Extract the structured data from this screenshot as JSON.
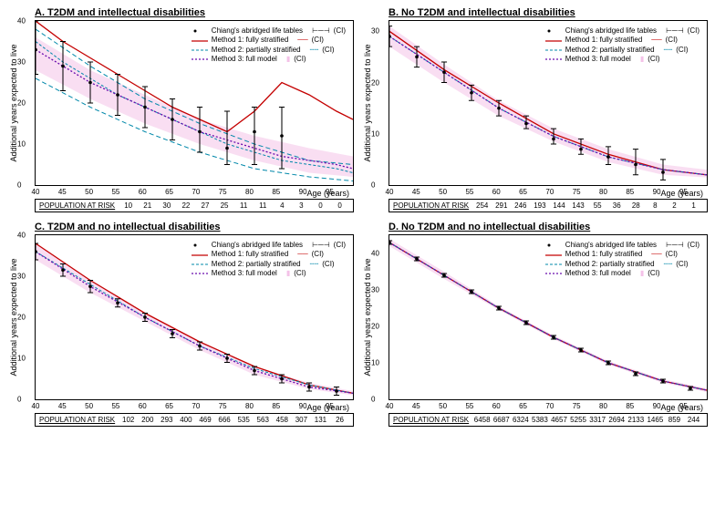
{
  "global": {
    "ylabel": "Additional years expected to live",
    "xlabel": "Age (years)",
    "pop_label": "POPULATION AT RISK",
    "x_ticks": [
      40,
      45,
      50,
      55,
      60,
      65,
      70,
      75,
      80,
      85,
      90,
      95
    ],
    "xlim": [
      40,
      98
    ],
    "legend": {
      "chiang": "Chiang's abridged life tables",
      "m1": "Method 1: fully stratified",
      "m2": "Method 2: partially stratified",
      "m3": "Method 3: full model",
      "ci": "(CI)"
    },
    "colors": {
      "points": "#000000",
      "m1_line": "#c40000",
      "m2_line": "#0088aa",
      "m3_line": "#6a0dad",
      "ci_fill": "#f4c2e8",
      "ci_fill_opacity": 0.55,
      "axis": "#000000"
    },
    "fonts": {
      "title_pt": 11,
      "axis_label_pt": 9,
      "tick_pt": 8,
      "legend_pt": 8
    }
  },
  "panels": [
    {
      "id": "A",
      "title": "A. T2DM and intellectual disabilities",
      "ylim": [
        0,
        40
      ],
      "y_ticks": [
        0,
        10,
        20,
        30,
        40
      ],
      "population": [
        10,
        21,
        30,
        22,
        27,
        25,
        11,
        11,
        4,
        3,
        0,
        0
      ],
      "points": [
        {
          "x": 40,
          "y": 33,
          "lo": 27,
          "hi": 40
        },
        {
          "x": 45,
          "y": 29,
          "lo": 23,
          "hi": 35
        },
        {
          "x": 50,
          "y": 25,
          "lo": 20,
          "hi": 30
        },
        {
          "x": 55,
          "y": 22,
          "lo": 17,
          "hi": 27
        },
        {
          "x": 60,
          "y": 19,
          "lo": 14,
          "hi": 24
        },
        {
          "x": 65,
          "y": 16,
          "lo": 11,
          "hi": 21
        },
        {
          "x": 70,
          "y": 13,
          "lo": 8,
          "hi": 19
        },
        {
          "x": 75,
          "y": 9,
          "lo": 5,
          "hi": 18
        },
        {
          "x": 80,
          "y": 13,
          "lo": 5,
          "hi": 19
        },
        {
          "x": 85,
          "y": 12,
          "lo": 4,
          "hi": 19
        }
      ],
      "m1": [
        [
          40,
          40
        ],
        [
          45,
          35
        ],
        [
          50,
          31
        ],
        [
          55,
          27
        ],
        [
          60,
          23
        ],
        [
          65,
          19
        ],
        [
          70,
          16
        ],
        [
          75,
          13
        ],
        [
          80,
          18
        ],
        [
          85,
          25
        ],
        [
          90,
          22
        ],
        [
          95,
          18
        ],
        [
          98,
          16
        ]
      ],
      "m2": [
        [
          40,
          35
        ],
        [
          45,
          30
        ],
        [
          50,
          26
        ],
        [
          55,
          22
        ],
        [
          60,
          19
        ],
        [
          65,
          16
        ],
        [
          70,
          13
        ],
        [
          75,
          10
        ],
        [
          80,
          8
        ],
        [
          85,
          6
        ],
        [
          90,
          5
        ],
        [
          95,
          4
        ],
        [
          98,
          3
        ]
      ],
      "m2_lo": [
        [
          40,
          26
        ],
        [
          50,
          19
        ],
        [
          60,
          13
        ],
        [
          70,
          8
        ],
        [
          80,
          4
        ],
        [
          90,
          2
        ],
        [
          98,
          1
        ]
      ],
      "m2_hi": [
        [
          40,
          38
        ],
        [
          50,
          29
        ],
        [
          60,
          21
        ],
        [
          70,
          15
        ],
        [
          80,
          10
        ],
        [
          90,
          6
        ],
        [
          98,
          5
        ]
      ],
      "m3": [
        [
          40,
          33
        ],
        [
          45,
          29
        ],
        [
          50,
          25
        ],
        [
          55,
          22
        ],
        [
          60,
          19
        ],
        [
          65,
          16
        ],
        [
          70,
          13
        ],
        [
          75,
          11
        ],
        [
          80,
          9
        ],
        [
          85,
          7
        ],
        [
          90,
          6
        ],
        [
          95,
          5
        ],
        [
          98,
          4
        ]
      ],
      "m3_ci_lo": [
        [
          40,
          28
        ],
        [
          50,
          21
        ],
        [
          60,
          15
        ],
        [
          70,
          10
        ],
        [
          80,
          6
        ],
        [
          90,
          3
        ],
        [
          98,
          2
        ]
      ],
      "m3_ci_hi": [
        [
          40,
          36
        ],
        [
          50,
          28
        ],
        [
          60,
          22
        ],
        [
          70,
          16
        ],
        [
          80,
          12
        ],
        [
          90,
          9
        ],
        [
          98,
          7
        ]
      ]
    },
    {
      "id": "B",
      "title": "B. No T2DM and intellectual disabilities",
      "ylim": [
        0,
        32
      ],
      "y_ticks": [
        0,
        10,
        20,
        30
      ],
      "population": [
        254,
        291,
        246,
        193,
        144,
        143,
        55,
        36,
        28,
        8,
        2,
        1
      ],
      "points": [
        {
          "x": 40,
          "y": 29,
          "lo": 27,
          "hi": 31
        },
        {
          "x": 45,
          "y": 25,
          "lo": 23,
          "hi": 27
        },
        {
          "x": 50,
          "y": 22,
          "lo": 20,
          "hi": 24
        },
        {
          "x": 55,
          "y": 18,
          "lo": 16.5,
          "hi": 19.5
        },
        {
          "x": 60,
          "y": 15,
          "lo": 13.5,
          "hi": 16.5
        },
        {
          "x": 65,
          "y": 12,
          "lo": 11,
          "hi": 13.5
        },
        {
          "x": 70,
          "y": 9,
          "lo": 8,
          "hi": 11
        },
        {
          "x": 75,
          "y": 7,
          "lo": 6,
          "hi": 9
        },
        {
          "x": 80,
          "y": 5.5,
          "lo": 4,
          "hi": 7.5
        },
        {
          "x": 85,
          "y": 4,
          "lo": 2,
          "hi": 7
        },
        {
          "x": 90,
          "y": 2.5,
          "lo": 1,
          "hi": 5
        }
      ],
      "m1": [
        [
          40,
          30
        ],
        [
          50,
          22.5
        ],
        [
          60,
          16
        ],
        [
          70,
          10
        ],
        [
          80,
          6
        ],
        [
          90,
          3
        ],
        [
          98,
          2
        ]
      ],
      "m2": [
        [
          40,
          29
        ],
        [
          50,
          22
        ],
        [
          60,
          15
        ],
        [
          70,
          9.5
        ],
        [
          80,
          5.5
        ],
        [
          90,
          3
        ],
        [
          98,
          2
        ]
      ],
      "m3": [
        [
          40,
          29
        ],
        [
          50,
          22
        ],
        [
          60,
          15
        ],
        [
          70,
          9.5
        ],
        [
          80,
          5.5
        ],
        [
          90,
          3
        ],
        [
          98,
          2
        ]
      ],
      "m3_ci_lo": [
        [
          40,
          27
        ],
        [
          50,
          20
        ],
        [
          60,
          13.5
        ],
        [
          70,
          8.5
        ],
        [
          80,
          4.5
        ],
        [
          90,
          2
        ],
        [
          98,
          1.5
        ]
      ],
      "m3_ci_hi": [
        [
          40,
          31
        ],
        [
          50,
          23.5
        ],
        [
          60,
          16.5
        ],
        [
          70,
          11
        ],
        [
          80,
          7
        ],
        [
          90,
          4
        ],
        [
          98,
          3
        ]
      ]
    },
    {
      "id": "C",
      "title": "C. T2DM and no intellectual disabilities",
      "ylim": [
        0,
        40
      ],
      "y_ticks": [
        0,
        10,
        20,
        30,
        40
      ],
      "population": [
        102,
        200,
        293,
        400,
        469,
        666,
        535,
        563,
        458,
        307,
        131,
        26
      ],
      "points": [
        {
          "x": 40,
          "y": 36,
          "lo": 34,
          "hi": 38
        },
        {
          "x": 45,
          "y": 31.5,
          "lo": 30,
          "hi": 33
        },
        {
          "x": 50,
          "y": 27.5,
          "lo": 26,
          "hi": 29
        },
        {
          "x": 55,
          "y": 23.5,
          "lo": 22.5,
          "hi": 24.5
        },
        {
          "x": 60,
          "y": 20,
          "lo": 19,
          "hi": 21
        },
        {
          "x": 65,
          "y": 16,
          "lo": 15,
          "hi": 17
        },
        {
          "x": 70,
          "y": 13,
          "lo": 12,
          "hi": 14
        },
        {
          "x": 75,
          "y": 10,
          "lo": 9,
          "hi": 11
        },
        {
          "x": 80,
          "y": 7,
          "lo": 6,
          "hi": 8
        },
        {
          "x": 85,
          "y": 5,
          "lo": 4,
          "hi": 6
        },
        {
          "x": 90,
          "y": 3,
          "lo": 2,
          "hi": 4
        },
        {
          "x": 95,
          "y": 2,
          "lo": 1,
          "hi": 3
        }
      ],
      "m1": [
        [
          40,
          38
        ],
        [
          50,
          29
        ],
        [
          60,
          21
        ],
        [
          70,
          14
        ],
        [
          80,
          8
        ],
        [
          90,
          3.5
        ],
        [
          98,
          1.5
        ]
      ],
      "m2": [
        [
          40,
          36
        ],
        [
          50,
          28
        ],
        [
          60,
          20
        ],
        [
          70,
          13
        ],
        [
          80,
          7.5
        ],
        [
          90,
          3.5
        ],
        [
          98,
          1.5
        ]
      ],
      "m3": [
        [
          40,
          36
        ],
        [
          50,
          27.5
        ],
        [
          60,
          20
        ],
        [
          70,
          13
        ],
        [
          80,
          7
        ],
        [
          90,
          3
        ],
        [
          98,
          1.5
        ]
      ],
      "m3_ci_lo": [
        [
          40,
          34
        ],
        [
          50,
          26
        ],
        [
          60,
          19
        ],
        [
          70,
          12
        ],
        [
          80,
          6
        ],
        [
          90,
          2.5
        ],
        [
          98,
          1
        ]
      ],
      "m3_ci_hi": [
        [
          40,
          38
        ],
        [
          50,
          29
        ],
        [
          60,
          21
        ],
        [
          70,
          14
        ],
        [
          80,
          8
        ],
        [
          90,
          4
        ],
        [
          98,
          2
        ]
      ]
    },
    {
      "id": "D",
      "title": "D. No T2DM and no  intellectual disabilities",
      "ylim": [
        0,
        45
      ],
      "y_ticks": [
        0,
        10,
        20,
        30,
        40
      ],
      "population": [
        6458,
        6687,
        6324,
        5383,
        4657,
        5255,
        3317,
        2694,
        2133,
        1465,
        859,
        244
      ],
      "points": [
        {
          "x": 40,
          "y": 43,
          "lo": 42.5,
          "hi": 43.5
        },
        {
          "x": 45,
          "y": 38.5,
          "lo": 38,
          "hi": 39
        },
        {
          "x": 50,
          "y": 34,
          "lo": 33.5,
          "hi": 34.5
        },
        {
          "x": 55,
          "y": 29.5,
          "lo": 29,
          "hi": 30
        },
        {
          "x": 60,
          "y": 25,
          "lo": 24.5,
          "hi": 25.5
        },
        {
          "x": 65,
          "y": 21,
          "lo": 20.5,
          "hi": 21.5
        },
        {
          "x": 70,
          "y": 17,
          "lo": 16.5,
          "hi": 17.5
        },
        {
          "x": 75,
          "y": 13.5,
          "lo": 13,
          "hi": 14
        },
        {
          "x": 80,
          "y": 10,
          "lo": 9.5,
          "hi": 10.5
        },
        {
          "x": 85,
          "y": 7,
          "lo": 6.5,
          "hi": 7.5
        },
        {
          "x": 90,
          "y": 5,
          "lo": 4.5,
          "hi": 5.5
        },
        {
          "x": 95,
          "y": 3,
          "lo": 2.5,
          "hi": 3.5
        }
      ],
      "m1": [
        [
          40,
          43
        ],
        [
          50,
          34
        ],
        [
          60,
          25
        ],
        [
          70,
          17
        ],
        [
          80,
          10
        ],
        [
          90,
          5
        ],
        [
          98,
          2.5
        ]
      ],
      "m2": [
        [
          40,
          43
        ],
        [
          50,
          34
        ],
        [
          60,
          25
        ],
        [
          70,
          17
        ],
        [
          80,
          10
        ],
        [
          90,
          5
        ],
        [
          98,
          2.5
        ]
      ],
      "m3": [
        [
          40,
          43
        ],
        [
          50,
          34
        ],
        [
          60,
          25
        ],
        [
          70,
          17
        ],
        [
          80,
          10
        ],
        [
          90,
          5
        ],
        [
          98,
          2.5
        ]
      ],
      "m3_ci_lo": [
        [
          40,
          42
        ],
        [
          50,
          33
        ],
        [
          60,
          24.5
        ],
        [
          70,
          16.5
        ],
        [
          80,
          9.5
        ],
        [
          90,
          4.5
        ],
        [
          98,
          2
        ]
      ],
      "m3_ci_hi": [
        [
          40,
          44
        ],
        [
          50,
          35
        ],
        [
          60,
          25.5
        ],
        [
          70,
          17.5
        ],
        [
          80,
          10.5
        ],
        [
          90,
          5.5
        ],
        [
          98,
          3
        ]
      ]
    }
  ]
}
